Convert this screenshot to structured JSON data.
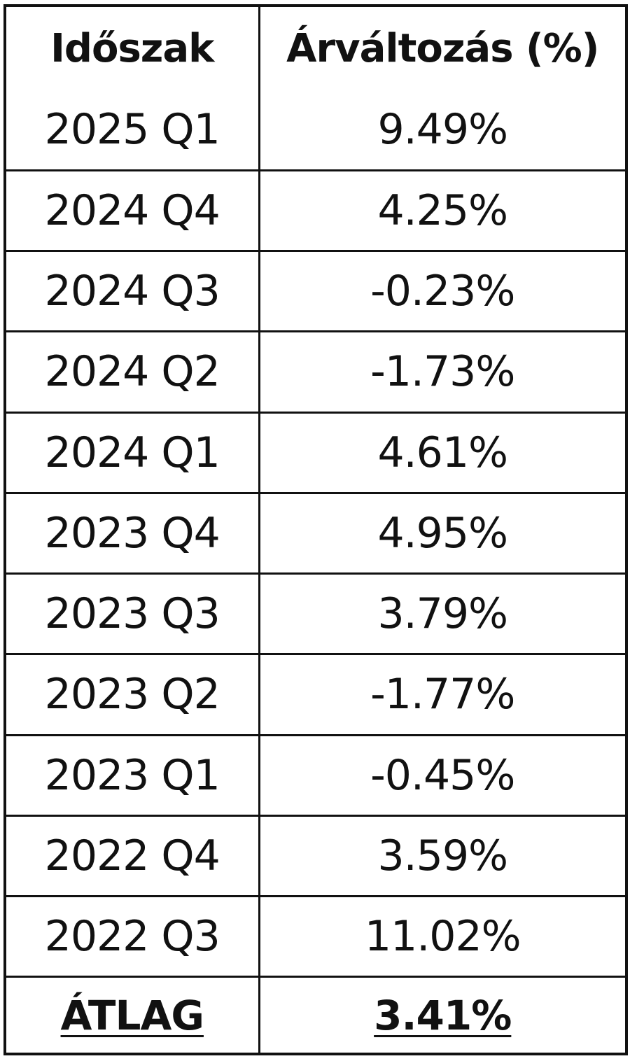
{
  "table": {
    "headers": {
      "period": "Időszak",
      "change": "Árváltozás (%)"
    },
    "rows": [
      {
        "period": "2025 Q1",
        "change": "9.49%"
      },
      {
        "period": "2024 Q4",
        "change": "4.25%"
      },
      {
        "period": "2024 Q3",
        "change": "-0.23%"
      },
      {
        "period": "2024 Q2",
        "change": "-1.73%"
      },
      {
        "period": "2024 Q1",
        "change": "4.61%"
      },
      {
        "period": "2023 Q4",
        "change": "4.95%"
      },
      {
        "period": "2023 Q3",
        "change": "3.79%"
      },
      {
        "period": "2023 Q2",
        "change": "-1.77%"
      },
      {
        "period": "2023 Q1",
        "change": "-0.45%"
      },
      {
        "period": "2022 Q4",
        "change": "3.59%"
      },
      {
        "period": "2022 Q3",
        "change": "11.02%"
      }
    ],
    "total": {
      "label": "ÁTLAG",
      "value": "3.41%"
    }
  }
}
